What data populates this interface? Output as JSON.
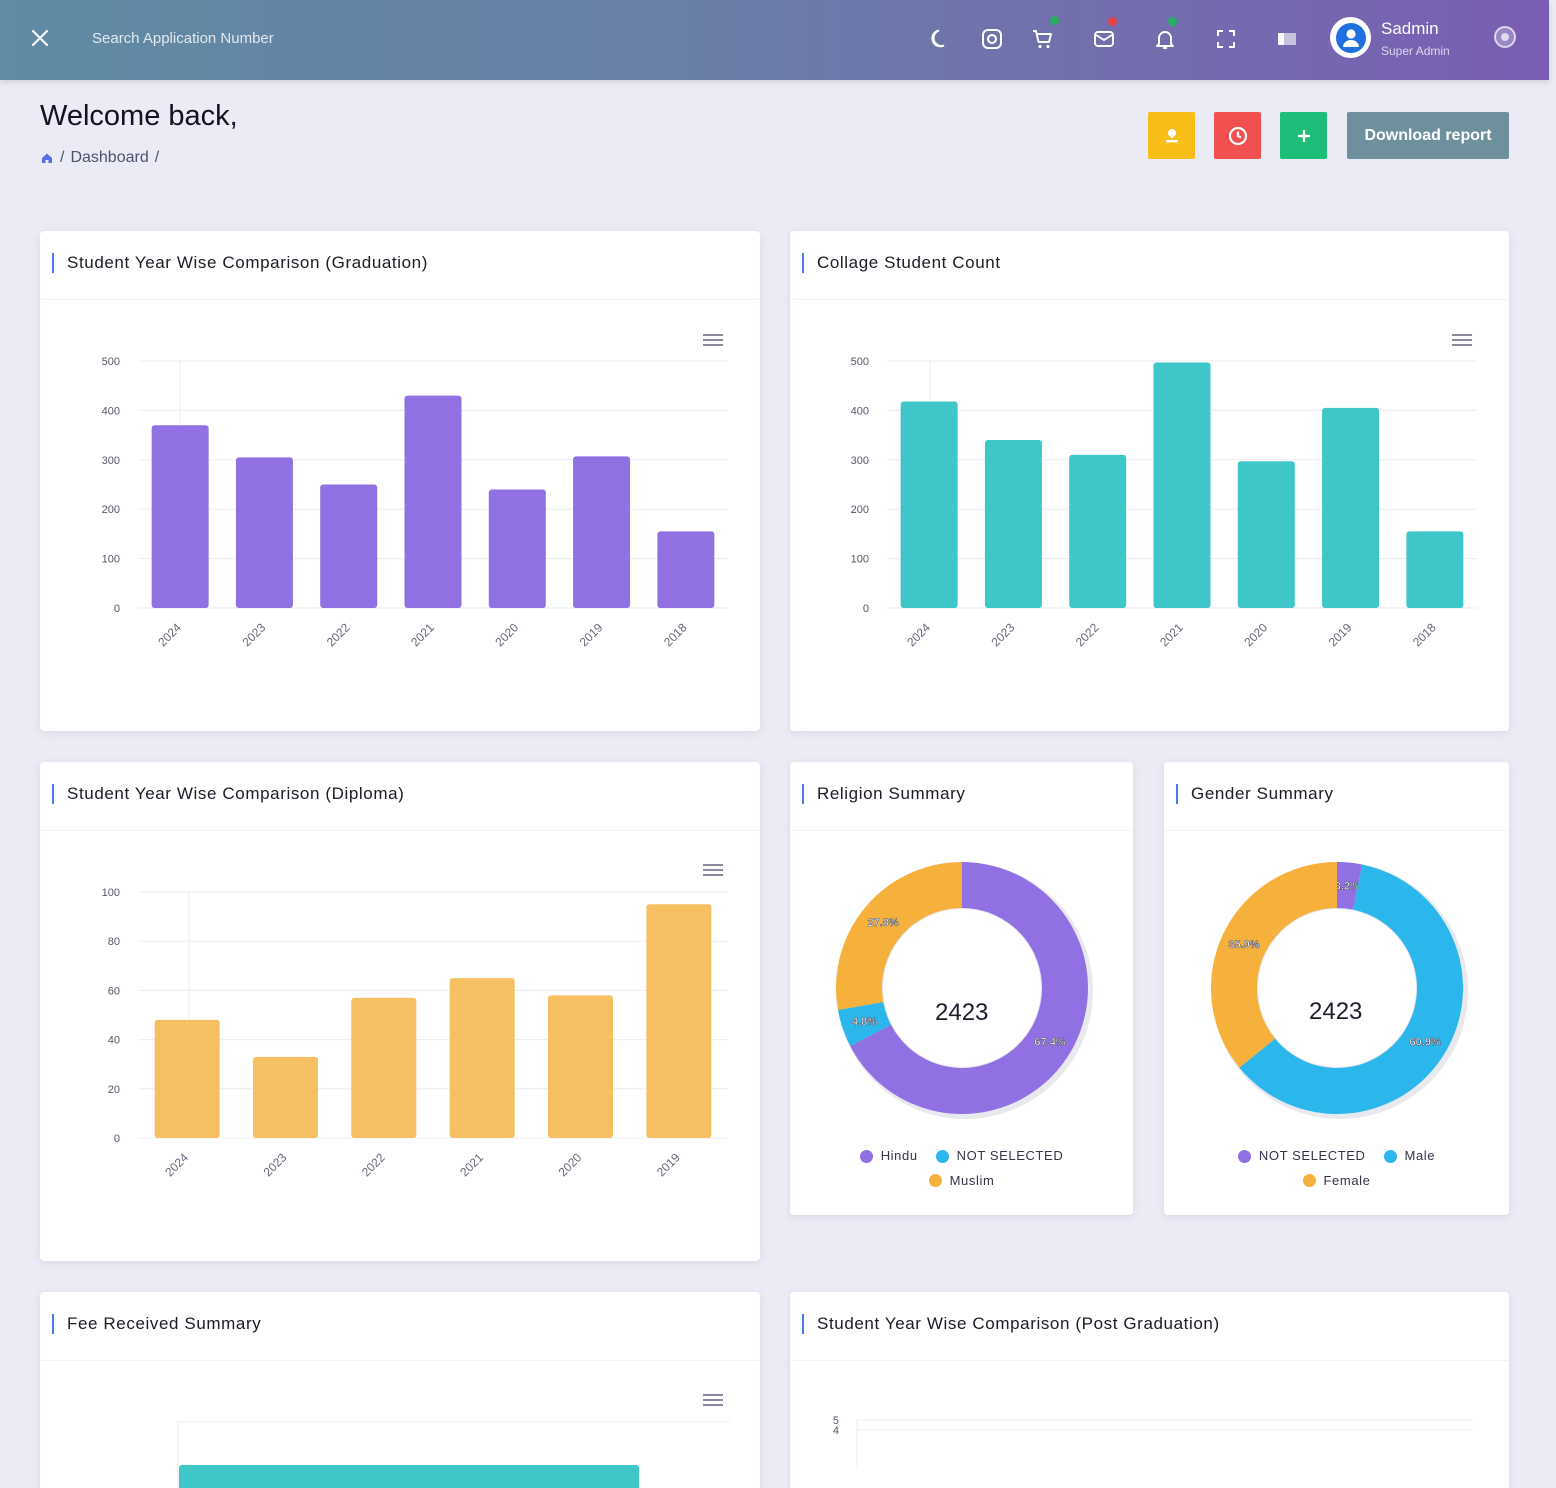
{
  "header": {
    "search": {
      "placeholder": "Search Application Number"
    },
    "user": {
      "name": "Sadmin",
      "role": "Super Admin"
    },
    "colors": {
      "cart_dot": "#27ae60",
      "mail_dot": "#e84141",
      "bell_dot": "#27ae60"
    }
  },
  "page": {
    "title": "Welcome back,",
    "breadcrumb": [
      "Dashboard"
    ],
    "breadcrumb_sep": "/",
    "download_label": "Download report",
    "action_colors": {
      "yellow": "#f8be18",
      "red": "#f0504f",
      "green": "#1dbd7a"
    }
  },
  "cards": {
    "graduation": {
      "title": "Student Year Wise Comparison (Graduation)"
    },
    "college": {
      "title": "Collage Student Count"
    },
    "diploma": {
      "title": "Student Year Wise Comparison (Diploma)"
    },
    "religion": {
      "title": "Religion Summary",
      "total": "2423"
    },
    "gender": {
      "title": "Gender Summary",
      "total": "2423"
    },
    "fee": {
      "title": "Fee Received Summary"
    },
    "postgrad": {
      "title": "Student Year Wise Comparison (Post Graduation)"
    }
  },
  "chart_data": [
    {
      "id": "graduation",
      "type": "bar",
      "title": "Student Year Wise Comparison (Graduation)",
      "categories": [
        "2024",
        "2023",
        "2022",
        "2021",
        "2020",
        "2019",
        "2018"
      ],
      "values": [
        370,
        305,
        250,
        430,
        240,
        307,
        155
      ],
      "ylim": [
        0,
        500
      ],
      "yticks": [
        0,
        100,
        200,
        300,
        400,
        500
      ],
      "color": "#9070e3",
      "grid": true
    },
    {
      "id": "college",
      "type": "bar",
      "title": "Collage Student Count",
      "categories": [
        "2024",
        "2023",
        "2022",
        "2021",
        "2020",
        "2019",
        "2018"
      ],
      "values": [
        418,
        340,
        310,
        497,
        297,
        405,
        155
      ],
      "ylim": [
        0,
        500
      ],
      "yticks": [
        0,
        100,
        200,
        300,
        400,
        500
      ],
      "color": "#3ec6c8",
      "grid": true
    },
    {
      "id": "diploma",
      "type": "bar",
      "title": "Student Year Wise Comparison (Diploma)",
      "categories": [
        "2024",
        "2023",
        "2022",
        "2021",
        "2020",
        "2019"
      ],
      "values": [
        48,
        33,
        57,
        65,
        58,
        95
      ],
      "ylim": [
        0,
        100
      ],
      "yticks": [
        0,
        20,
        40,
        60,
        80,
        100
      ],
      "color": "#f6c062",
      "grid": true
    },
    {
      "id": "religion",
      "type": "pie",
      "title": "Religion Summary",
      "slices": [
        {
          "name": "Hindu",
          "value": 67.4,
          "label": "67.4%",
          "color": "#9070e3"
        },
        {
          "name": "NOT SELECTED",
          "value": 4.8,
          "label": "4.8%",
          "color": "#2bb7ec"
        },
        {
          "name": "Muslim",
          "value": 27.8,
          "label": "27.8%",
          "color": "#f6b13d"
        }
      ],
      "legend": "bottom"
    },
    {
      "id": "gender",
      "type": "pie",
      "title": "Gender Summary",
      "slices": [
        {
          "name": "NOT SELECTED",
          "value": 3.2,
          "label": "3.2%",
          "color": "#9070e3"
        },
        {
          "name": "Male",
          "value": 60.9,
          "label": "60.9%",
          "color": "#2bb7ec"
        },
        {
          "name": "Female",
          "value": 35.9,
          "label": "35.9%",
          "color": "#f6b13d"
        }
      ],
      "legend": "bottom"
    },
    {
      "id": "postgrad",
      "type": "bar",
      "title": "Student Year Wise Comparison (Post Graduation)",
      "categories": [],
      "values": [],
      "ylim": [
        0,
        5
      ],
      "yticks": [
        4,
        5
      ],
      "grid": true
    }
  ]
}
